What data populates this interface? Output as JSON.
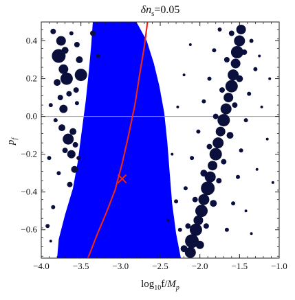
{
  "chart_data": {
    "type": "scatter",
    "title": "δn_s=0.05",
    "title_parts": {
      "main": "δn",
      "sub": "s",
      "rest": "=0.05"
    },
    "xlabel": "log₁₀f/M_p",
    "xlabel_parts": {
      "a": "log",
      "sub": "10",
      "b": "f/",
      "c": "M",
      "csub": "p"
    },
    "ylabel": "p_f",
    "ylabel_parts": {
      "main": "p",
      "sub": "f"
    },
    "xlim": [
      -4.0,
      -1.0
    ],
    "ylim": [
      -0.75,
      0.5
    ],
    "x_ticks": [
      -4.0,
      -3.5,
      -3.0,
      -2.5,
      -2.0,
      -1.5,
      -1.0
    ],
    "x_tick_labels": [
      "−4.0",
      "−3.5",
      "−3.0",
      "−2.5",
      "−2.0",
      "−1.5",
      "−1.0"
    ],
    "y_ticks": [
      0.4,
      0.2,
      0.0,
      -0.2,
      -0.4,
      -0.6
    ],
    "y_tick_labels": [
      "0.4",
      "0.2",
      "0.0",
      "−0.2",
      "−0.4",
      "−0.6"
    ],
    "grid": false,
    "reference_line_y": 0.0,
    "colors": {
      "band": "#0000ff",
      "curve": "#e8281e",
      "points": "#0a0f3c",
      "marker": "#e8281e",
      "refline": "#9a9a9a"
    },
    "band": {
      "left_edge": [
        {
          "x": -3.8,
          "p": -0.75
        },
        {
          "x": -3.78,
          "p": -0.65
        },
        {
          "x": -3.7,
          "p": -0.52
        },
        {
          "x": -3.6,
          "p": -0.38
        },
        {
          "x": -3.54,
          "p": -0.24
        },
        {
          "x": -3.49,
          "p": -0.08
        },
        {
          "x": -3.44,
          "p": 0.08
        },
        {
          "x": -3.4,
          "p": 0.24
        },
        {
          "x": -3.37,
          "p": 0.38
        },
        {
          "x": -3.35,
          "p": 0.5
        }
      ],
      "right_edge": [
        {
          "x": -2.8,
          "p": 0.5
        },
        {
          "x": -2.67,
          "p": 0.4
        },
        {
          "x": -2.58,
          "p": 0.28
        },
        {
          "x": -2.51,
          "p": 0.16
        },
        {
          "x": -2.45,
          "p": 0.02
        },
        {
          "x": -2.41,
          "p": -0.14
        },
        {
          "x": -2.38,
          "p": -0.3
        },
        {
          "x": -2.35,
          "p": -0.46
        },
        {
          "x": -2.3,
          "p": -0.62
        },
        {
          "x": -2.24,
          "p": -0.75
        }
      ]
    },
    "curve": [
      {
        "x": -3.41,
        "p": -0.75
      },
      {
        "x": -3.3,
        "p": -0.63
      },
      {
        "x": -3.18,
        "p": -0.51
      },
      {
        "x": -3.07,
        "p": -0.39
      },
      {
        "x": -2.98,
        "p": -0.25
      },
      {
        "x": -2.9,
        "p": -0.1
      },
      {
        "x": -2.82,
        "p": 0.06
      },
      {
        "x": -2.76,
        "p": 0.22
      },
      {
        "x": -2.7,
        "p": 0.37
      },
      {
        "x": -2.66,
        "p": 0.5
      }
    ],
    "marker": {
      "x": -2.98,
      "p": -0.33,
      "symbol": "×"
    },
    "points": [
      {
        "x": -3.85,
        "p": 0.45,
        "s": 4
      },
      {
        "x": -3.75,
        "p": 0.4,
        "s": 7
      },
      {
        "x": -3.78,
        "p": 0.32,
        "s": 10
      },
      {
        "x": -3.7,
        "p": 0.35,
        "s": 5
      },
      {
        "x": -3.72,
        "p": 0.25,
        "s": 7
      },
      {
        "x": -3.68,
        "p": 0.2,
        "s": 9
      },
      {
        "x": -3.8,
        "p": 0.18,
        "s": 5
      },
      {
        "x": -3.76,
        "p": 0.1,
        "s": 4
      },
      {
        "x": -3.65,
        "p": 0.12,
        "s": 4
      },
      {
        "x": -3.72,
        "p": 0.04,
        "s": 6
      },
      {
        "x": -3.88,
        "p": 0.06,
        "s": 3
      },
      {
        "x": -3.82,
        "p": -0.02,
        "s": 3
      },
      {
        "x": -3.74,
        "p": -0.06,
        "s": 5
      },
      {
        "x": -3.66,
        "p": -0.12,
        "s": 8
      },
      {
        "x": -3.62,
        "p": -0.2,
        "s": 6
      },
      {
        "x": -3.7,
        "p": -0.18,
        "s": 4
      },
      {
        "x": -3.58,
        "p": -0.28,
        "s": 5
      },
      {
        "x": -3.64,
        "p": -0.36,
        "s": 4
      },
      {
        "x": -3.78,
        "p": -0.3,
        "s": 3
      },
      {
        "x": -3.9,
        "p": -0.22,
        "s": 3
      },
      {
        "x": -3.85,
        "p": -0.48,
        "s": 3
      },
      {
        "x": -3.92,
        "p": -0.58,
        "s": 3
      },
      {
        "x": -3.88,
        "p": -0.66,
        "s": 2
      },
      {
        "x": -3.55,
        "p": 0.38,
        "s": 4
      },
      {
        "x": -3.52,
        "p": 0.3,
        "s": 5
      },
      {
        "x": -3.5,
        "p": 0.22,
        "s": 9
      },
      {
        "x": -3.56,
        "p": 0.14,
        "s": 4
      },
      {
        "x": -3.55,
        "p": 0.07,
        "s": 3
      },
      {
        "x": -3.62,
        "p": 0.44,
        "s": 3
      },
      {
        "x": -3.35,
        "p": 0.44,
        "s": 4
      },
      {
        "x": -3.28,
        "p": 0.32,
        "s": 3
      },
      {
        "x": -3.6,
        "p": -0.08,
        "s": 5
      },
      {
        "x": -3.57,
        "p": -0.15,
        "s": 4
      },
      {
        "x": -3.53,
        "p": -0.22,
        "s": 3
      },
      {
        "x": -2.12,
        "p": -0.72,
        "s": 8
      },
      {
        "x": -2.1,
        "p": -0.66,
        "s": 10
      },
      {
        "x": -2.05,
        "p": -0.6,
        "s": 9
      },
      {
        "x": -2.02,
        "p": -0.55,
        "s": 7
      },
      {
        "x": -1.98,
        "p": -0.5,
        "s": 9
      },
      {
        "x": -1.95,
        "p": -0.44,
        "s": 8
      },
      {
        "x": -1.9,
        "p": -0.38,
        "s": 10
      },
      {
        "x": -1.87,
        "p": -0.32,
        "s": 8
      },
      {
        "x": -1.84,
        "p": -0.26,
        "s": 7
      },
      {
        "x": -1.8,
        "p": -0.2,
        "s": 9
      },
      {
        "x": -1.77,
        "p": -0.14,
        "s": 8
      },
      {
        "x": -1.74,
        "p": -0.08,
        "s": 7
      },
      {
        "x": -1.7,
        "p": -0.02,
        "s": 9
      },
      {
        "x": -1.67,
        "p": 0.04,
        "s": 8
      },
      {
        "x": -1.64,
        "p": 0.1,
        "s": 7
      },
      {
        "x": -1.6,
        "p": 0.16,
        "s": 9
      },
      {
        "x": -1.58,
        "p": 0.22,
        "s": 8
      },
      {
        "x": -1.55,
        "p": 0.28,
        "s": 7
      },
      {
        "x": -1.53,
        "p": 0.34,
        "s": 9
      },
      {
        "x": -1.5,
        "p": 0.4,
        "s": 8
      },
      {
        "x": -1.48,
        "p": 0.46,
        "s": 7
      },
      {
        "x": -2.2,
        "p": -0.7,
        "s": 5
      },
      {
        "x": -2.0,
        "p": -0.68,
        "s": 6
      },
      {
        "x": -1.92,
        "p": -0.58,
        "s": 4
      },
      {
        "x": -2.15,
        "p": -0.58,
        "s": 4
      },
      {
        "x": -1.83,
        "p": -0.46,
        "s": 5
      },
      {
        "x": -2.06,
        "p": -0.44,
        "s": 4
      },
      {
        "x": -1.76,
        "p": -0.34,
        "s": 4
      },
      {
        "x": -1.95,
        "p": -0.3,
        "s": 5
      },
      {
        "x": -1.7,
        "p": -0.24,
        "s": 4
      },
      {
        "x": -1.88,
        "p": -0.16,
        "s": 4
      },
      {
        "x": -1.62,
        "p": -0.1,
        "s": 5
      },
      {
        "x": -1.8,
        "p": 0.0,
        "s": 4
      },
      {
        "x": -1.56,
        "p": 0.06,
        "s": 4
      },
      {
        "x": -1.72,
        "p": 0.14,
        "s": 4
      },
      {
        "x": -1.5,
        "p": 0.2,
        "s": 5
      },
      {
        "x": -1.66,
        "p": 0.3,
        "s": 4
      },
      {
        "x": -1.44,
        "p": 0.34,
        "s": 4
      },
      {
        "x": -1.6,
        "p": 0.44,
        "s": 4
      },
      {
        "x": -2.25,
        "p": -0.6,
        "s": 3
      },
      {
        "x": -2.3,
        "p": -0.45,
        "s": 3
      },
      {
        "x": -2.18,
        "p": -0.38,
        "s": 3
      },
      {
        "x": -2.1,
        "p": -0.22,
        "s": 3
      },
      {
        "x": -2.02,
        "p": -0.08,
        "s": 3
      },
      {
        "x": -1.95,
        "p": 0.08,
        "s": 3
      },
      {
        "x": -1.88,
        "p": 0.2,
        "s": 3
      },
      {
        "x": -1.82,
        "p": 0.35,
        "s": 3
      },
      {
        "x": -1.75,
        "p": 0.46,
        "s": 3
      },
      {
        "x": -1.35,
        "p": 0.4,
        "s": 3
      },
      {
        "x": -1.3,
        "p": 0.25,
        "s": 3
      },
      {
        "x": -1.38,
        "p": 0.12,
        "s": 3
      },
      {
        "x": -1.42,
        "p": -0.02,
        "s": 3
      },
      {
        "x": -1.48,
        "p": -0.18,
        "s": 3
      },
      {
        "x": -1.52,
        "p": -0.32,
        "s": 3
      },
      {
        "x": -1.58,
        "p": -0.46,
        "s": 3
      },
      {
        "x": -1.66,
        "p": -0.6,
        "s": 3
      },
      {
        "x": -1.22,
        "p": 0.05,
        "s": 2
      },
      {
        "x": -1.15,
        "p": -0.12,
        "s": 2
      },
      {
        "x": -1.28,
        "p": -0.28,
        "s": 2
      },
      {
        "x": -1.42,
        "p": -0.5,
        "s": 2
      },
      {
        "x": -1.25,
        "p": 0.32,
        "s": 2
      },
      {
        "x": -2.35,
        "p": -0.2,
        "s": 2
      },
      {
        "x": -2.28,
        "p": 0.05,
        "s": 2
      },
      {
        "x": -2.2,
        "p": 0.22,
        "s": 2
      },
      {
        "x": -2.12,
        "p": 0.38,
        "s": 2
      },
      {
        "x": -1.12,
        "p": 0.2,
        "s": 2
      },
      {
        "x": -1.08,
        "p": -0.35,
        "s": 2
      },
      {
        "x": -1.35,
        "p": -0.62,
        "s": 2
      },
      {
        "x": -2.4,
        "p": -0.55,
        "s": 2
      }
    ]
  }
}
